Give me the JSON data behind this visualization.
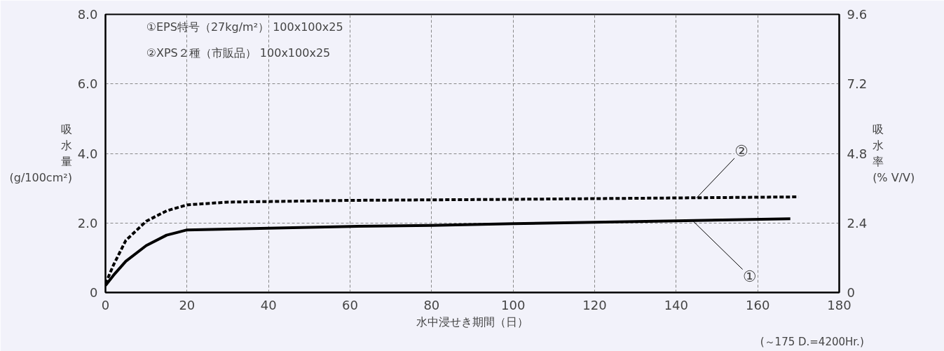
{
  "chart_data": {
    "type": "line",
    "xlabel": "水中浸せき期間（日）",
    "ylabel": "吸水量(g/100cm²)",
    "y2label": "吸水率(% V/V)",
    "xlim": [
      0,
      180
    ],
    "xticks": [
      0,
      20,
      40,
      60,
      80,
      100,
      120,
      140,
      160,
      180
    ],
    "ylim": [
      0,
      8
    ],
    "yticks": [
      0,
      {
        "value": 2,
        "label": "2.0"
      },
      {
        "value": 4,
        "label": "4.0"
      },
      {
        "value": 6,
        "label": "6.0"
      },
      {
        "value": 8,
        "label": "8.0"
      }
    ],
    "y2lim": [
      0,
      9.6
    ],
    "y2ticks": [
      0,
      2.4,
      4.8,
      7.2,
      9.6
    ],
    "grid": true,
    "series": [
      {
        "color": "#000000",
        "line_style": "solid",
        "x": [
          0,
          2,
          5,
          10,
          15,
          20,
          40,
          60,
          80,
          100,
          120,
          140,
          168
        ],
        "values": [
          0.2,
          0.5,
          0.9,
          1.35,
          1.65,
          1.8,
          1.85,
          1.9,
          1.93,
          1.98,
          2.02,
          2.06,
          2.12
        ]
      },
      {
        "color": "#000000",
        "line_style": "dashed",
        "x": [
          0,
          2,
          5,
          10,
          15,
          20,
          30,
          60,
          100,
          140,
          170
        ],
        "values": [
          0.25,
          0.8,
          1.5,
          2.05,
          2.35,
          2.52,
          2.6,
          2.65,
          2.68,
          2.72,
          2.75
        ]
      }
    ],
    "annotations": [
      "①EPS特号（27kg/m²）  100x100x25",
      "②XPS２種（市販品）  100x100x25",
      {
        "text": "①",
        "x": 144,
        "y": 2.07
      },
      {
        "text": "②",
        "x": 145,
        "y": 2.72
      },
      "(～175  D.=4200Hr.)"
    ]
  }
}
